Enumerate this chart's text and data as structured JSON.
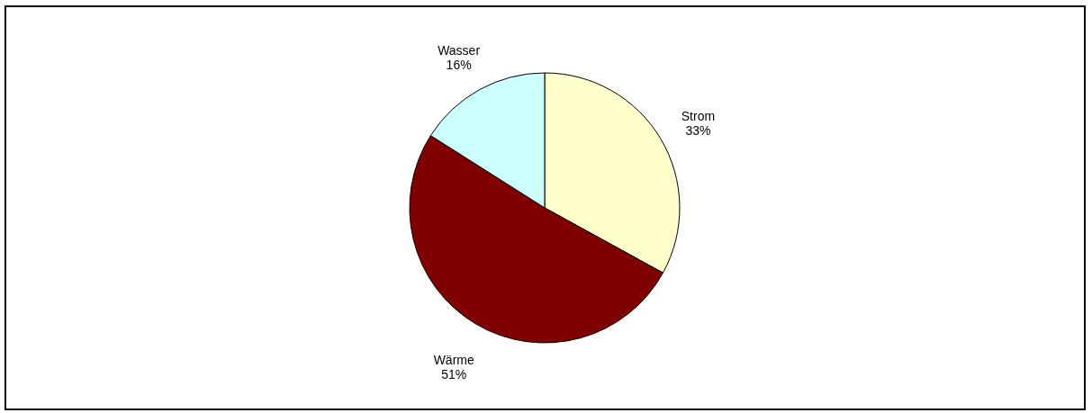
{
  "chart_data": {
    "type": "pie",
    "categories": [
      "Strom",
      "Wärme",
      "Wasser"
    ],
    "values": [
      33,
      51,
      16
    ],
    "colors": [
      "#ffffcc",
      "#800000",
      "#ccffff"
    ],
    "value_labels": [
      "33%",
      "51%",
      "16%"
    ]
  }
}
